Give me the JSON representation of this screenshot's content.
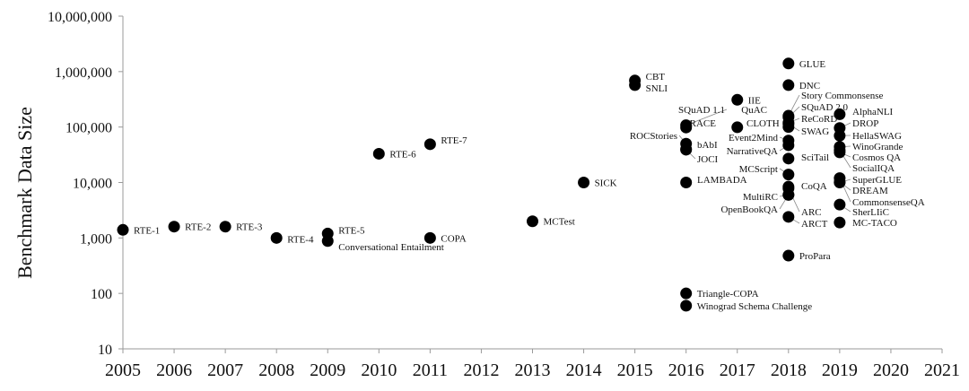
{
  "chart_data": {
    "type": "scatter",
    "title": "",
    "xlabel": "",
    "ylabel": "Benchmark Data Size",
    "y_scale": "log",
    "xlim": [
      2005,
      2021
    ],
    "ylim": [
      10,
      10000000
    ],
    "grid": false,
    "legend": "none",
    "x_ticks": [
      "2005",
      "2006",
      "2007",
      "2008",
      "2009",
      "2010",
      "2011",
      "2012",
      "2013",
      "2014",
      "2015",
      "2016",
      "2017",
      "2018",
      "2019",
      "2020",
      "2021"
    ],
    "y_ticks": [
      "10",
      "100",
      "1,000",
      "10,000",
      "100,000",
      "1,000,000",
      "10,000,000"
    ],
    "points": [
      {
        "label": "RTE-1",
        "x": 2005,
        "y": 1400
      },
      {
        "label": "RTE-2",
        "x": 2006,
        "y": 1600
      },
      {
        "label": "RTE-3",
        "x": 2007,
        "y": 1600
      },
      {
        "label": "RTE-4",
        "x": 2008,
        "y": 1000
      },
      {
        "label": "RTE-5",
        "x": 2009,
        "y": 1200
      },
      {
        "label": "Conversational Entailment",
        "x": 2009,
        "y": 880
      },
      {
        "label": "RTE-6",
        "x": 2010,
        "y": 33000
      },
      {
        "label": "RTE-7",
        "x": 2011,
        "y": 49000
      },
      {
        "label": "COPA",
        "x": 2011,
        "y": 1000
      },
      {
        "label": "MCTest",
        "x": 2013,
        "y": 2000
      },
      {
        "label": "SICK",
        "x": 2014,
        "y": 10000
      },
      {
        "label": "CBT",
        "x": 2015,
        "y": 690000
      },
      {
        "label": "SNLI",
        "x": 2015,
        "y": 570000
      },
      {
        "label": "SQuAD 1.1",
        "x": 2016,
        "y": 108000
      },
      {
        "label": "RACE",
        "x": 2016,
        "y": 98000
      },
      {
        "label": "ROCStories",
        "x": 2016,
        "y": 50000
      },
      {
        "label": "bAbI",
        "x": 2016,
        "y": 40000
      },
      {
        "label": "JOCI",
        "x": 2016,
        "y": 39000
      },
      {
        "label": "LAMBADA",
        "x": 2016,
        "y": 10000
      },
      {
        "label": "Triangle-COPA",
        "x": 2016,
        "y": 100
      },
      {
        "label": "Winograd Schema Challenge",
        "x": 2016,
        "y": 60
      },
      {
        "label": "IIE",
        "x": 2017,
        "y": 310000
      },
      {
        "label": "CLOTH",
        "x": 2017,
        "y": 99000
      },
      {
        "label": "QuAC",
        "x": 2018,
        "y": 100000
      },
      {
        "label": "GLUE",
        "x": 2018,
        "y": 1400000
      },
      {
        "label": "DNC",
        "x": 2018,
        "y": 570000
      },
      {
        "label": "Story Commonsense",
        "x": 2018,
        "y": 160000
      },
      {
        "label": "SQuAD 2.0",
        "x": 2018,
        "y": 150000
      },
      {
        "label": "ReCoRD",
        "x": 2018,
        "y": 120000
      },
      {
        "label": "SWAG",
        "x": 2018,
        "y": 113000
      },
      {
        "label": "Event2Mind",
        "x": 2018,
        "y": 57000
      },
      {
        "label": "NarrativeQA",
        "x": 2018,
        "y": 47000
      },
      {
        "label": "SciTail",
        "x": 2018,
        "y": 27000
      },
      {
        "label": "MCScript",
        "x": 2018,
        "y": 13900
      },
      {
        "label": "CoQA",
        "x": 2018,
        "y": 8400
      },
      {
        "label": "MultiRC",
        "x": 2018,
        "y": 6000
      },
      {
        "label": "OpenBookQA",
        "x": 2018,
        "y": 6000
      },
      {
        "label": "ARC",
        "x": 2018,
        "y": 7800
      },
      {
        "label": "ARCT",
        "x": 2018,
        "y": 2400
      },
      {
        "label": "ProPara",
        "x": 2018,
        "y": 480
      },
      {
        "label": "AlphaNLI",
        "x": 2019,
        "y": 170000
      },
      {
        "label": "DROP",
        "x": 2019,
        "y": 96000
      },
      {
        "label": "HellaSWAG",
        "x": 2019,
        "y": 70000
      },
      {
        "label": "WinoGrande",
        "x": 2019,
        "y": 44000
      },
      {
        "label": "Cosmos QA",
        "x": 2019,
        "y": 35000
      },
      {
        "label": "SocialIQA",
        "x": 2019,
        "y": 38000
      },
      {
        "label": "SuperGLUE",
        "x": 2019,
        "y": 10000
      },
      {
        "label": "DREAM",
        "x": 2019,
        "y": 10200
      },
      {
        "label": "CommonsenseQA",
        "x": 2019,
        "y": 12000
      },
      {
        "label": "SherLIiC",
        "x": 2019,
        "y": 4000
      },
      {
        "label": "MC-TACO",
        "x": 2019,
        "y": 1900
      }
    ]
  }
}
